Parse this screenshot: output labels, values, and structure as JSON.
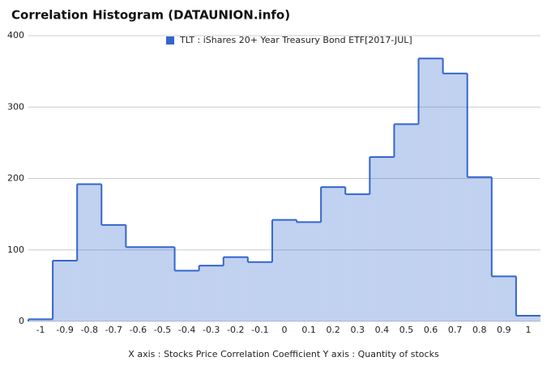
{
  "chart_data": {
    "type": "histogram",
    "title": "Correlation Histogram (DATAUNION.info)",
    "series": [
      {
        "name": "TLT : iShares 20+ Year Treasury Bond ETF[2017-JUL]",
        "color": "#3366cc",
        "values": [
          3,
          85,
          192,
          135,
          104,
          104,
          71,
          78,
          90,
          83,
          142,
          139,
          188,
          178,
          230,
          276,
          368,
          347,
          202,
          63,
          8
        ]
      }
    ],
    "bins": [
      -1.05,
      -0.95,
      -0.85,
      -0.75,
      -0.65,
      -0.55,
      -0.45,
      -0.35,
      -0.25,
      -0.15,
      -0.05,
      0.05,
      0.15,
      0.25,
      0.35,
      0.45,
      0.55,
      0.65,
      0.75,
      0.85,
      0.95,
      1.05
    ],
    "xlim": [
      -1.05,
      1.05
    ],
    "xticks": [
      -1,
      -0.9,
      -0.8,
      -0.7,
      -0.6,
      -0.5,
      -0.4,
      -0.3,
      -0.2,
      -0.1,
      0,
      0.1,
      0.2,
      0.3,
      0.4,
      0.5,
      0.6,
      0.7,
      0.8,
      0.9,
      1
    ],
    "ylim": [
      0,
      400
    ],
    "yticks": [
      0,
      100,
      200,
      300,
      400
    ],
    "grid": true,
    "xlabel": "X axis : Stocks Price Correlation Coefficient  Y axis : Quantity of stocks"
  }
}
